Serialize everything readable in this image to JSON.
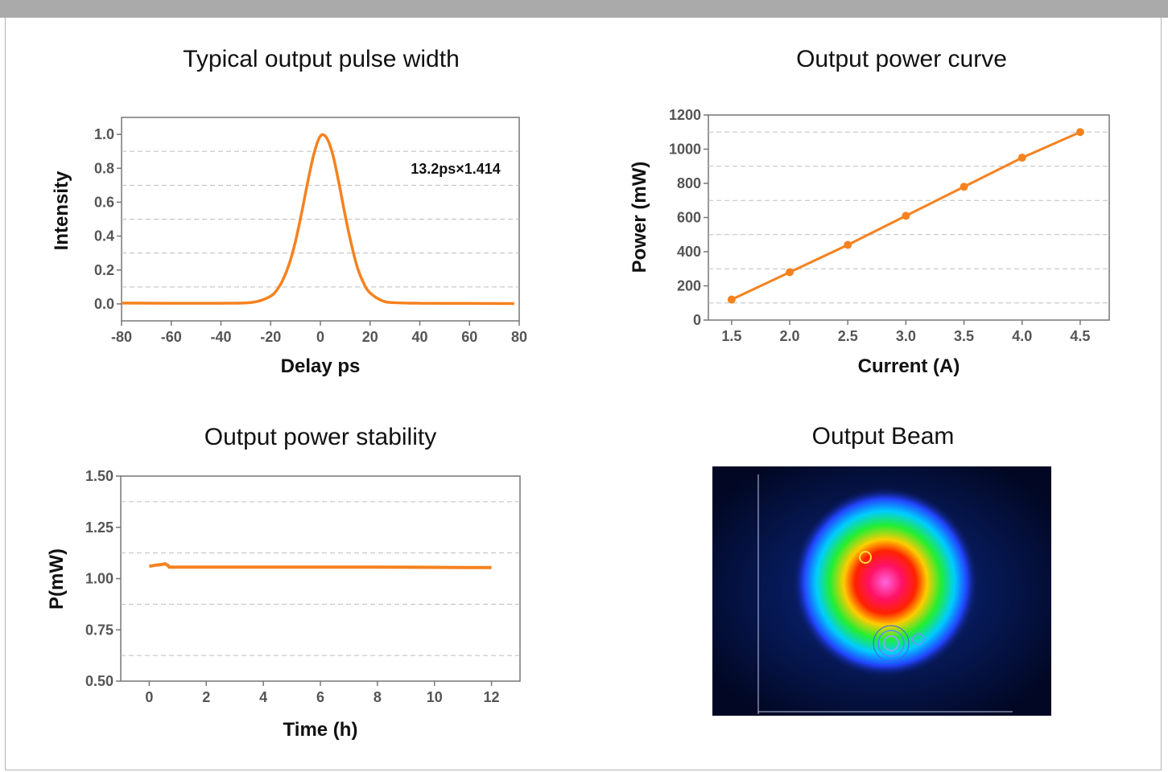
{
  "accent_color": "#f5821f",
  "chart_data": [
    {
      "id": "pulse",
      "type": "line",
      "title": "Typical output pulse width",
      "xlabel": "Delay ps",
      "ylabel": "Intensity",
      "xlim": [
        -80,
        80
      ],
      "ylim": [
        -0.1,
        1.1
      ],
      "xticks": [
        -80,
        -60,
        -40,
        -20,
        0,
        20,
        40,
        60,
        80
      ],
      "yticks": [
        0.0,
        0.2,
        0.4,
        0.6,
        0.8,
        1.0
      ],
      "ytick_labels": [
        "0.0",
        "0.2",
        "0.4",
        "0.6",
        "0.8",
        "1.0"
      ],
      "grid": "dashed horizontal",
      "annotation": "13.2ps×1.414",
      "series": [
        {
          "x": [
            -80,
            -60,
            -40,
            -30,
            -25,
            -20,
            -17.5,
            -15,
            -12.5,
            -10,
            -7.5,
            -5,
            -2.5,
            0,
            2.5,
            5,
            7.5,
            10,
            12.5,
            15,
            17.5,
            20,
            25,
            30,
            40,
            60,
            78
          ],
          "values": [
            0.005,
            0.004,
            0.004,
            0.006,
            0.016,
            0.046,
            0.082,
            0.144,
            0.237,
            0.37,
            0.54,
            0.725,
            0.89,
            0.99,
            0.98,
            0.88,
            0.71,
            0.52,
            0.35,
            0.21,
            0.12,
            0.065,
            0.018,
            0.007,
            0.004,
            0.003,
            0.002
          ]
        }
      ]
    },
    {
      "id": "power",
      "type": "line",
      "title": "Output power curve",
      "xlabel": "Current (A)",
      "ylabel": "Power (mW)",
      "xlim": [
        1.3,
        4.75
      ],
      "ylim": [
        0,
        1200
      ],
      "xticks": [
        1.5,
        2.0,
        2.5,
        3.0,
        3.5,
        4.0,
        4.5
      ],
      "xtick_labels": [
        "1.5",
        "2.0",
        "2.5",
        "3.0",
        "3.5",
        "4.0",
        "4.5"
      ],
      "yticks": [
        0,
        200,
        400,
        600,
        800,
        1000,
        1200
      ],
      "grid": "dashed horizontal",
      "series": [
        {
          "x": [
            1.5,
            2.0,
            2.5,
            3.0,
            3.5,
            4.0,
            4.5
          ],
          "values": [
            120,
            280,
            440,
            610,
            780,
            950,
            1100
          ]
        }
      ]
    },
    {
      "id": "stability",
      "type": "line",
      "title": "Output power stability",
      "xlabel": "Time (h)",
      "ylabel": "P(mW)",
      "xlim": [
        -1,
        13
      ],
      "ylim": [
        0.5,
        1.5
      ],
      "xticks": [
        0,
        2,
        4,
        6,
        8,
        10,
        12
      ],
      "yticks": [
        0.5,
        0.75,
        1.0,
        1.25,
        1.5
      ],
      "ytick_labels": [
        "0.50",
        "0.75",
        "1.00",
        "1.25",
        "1.50"
      ],
      "grid": "dashed horizontal",
      "series": [
        {
          "x": [
            0,
            0.2,
            0.4,
            0.55,
            0.65,
            0.7,
            1,
            2,
            4,
            6,
            8,
            10,
            11,
            12
          ],
          "values": [
            1.06,
            1.065,
            1.068,
            1.072,
            1.065,
            1.056,
            1.056,
            1.056,
            1.056,
            1.056,
            1.056,
            1.055,
            1.054,
            1.054
          ]
        }
      ]
    }
  ],
  "beam_panel": {
    "title": "Output Beam"
  }
}
